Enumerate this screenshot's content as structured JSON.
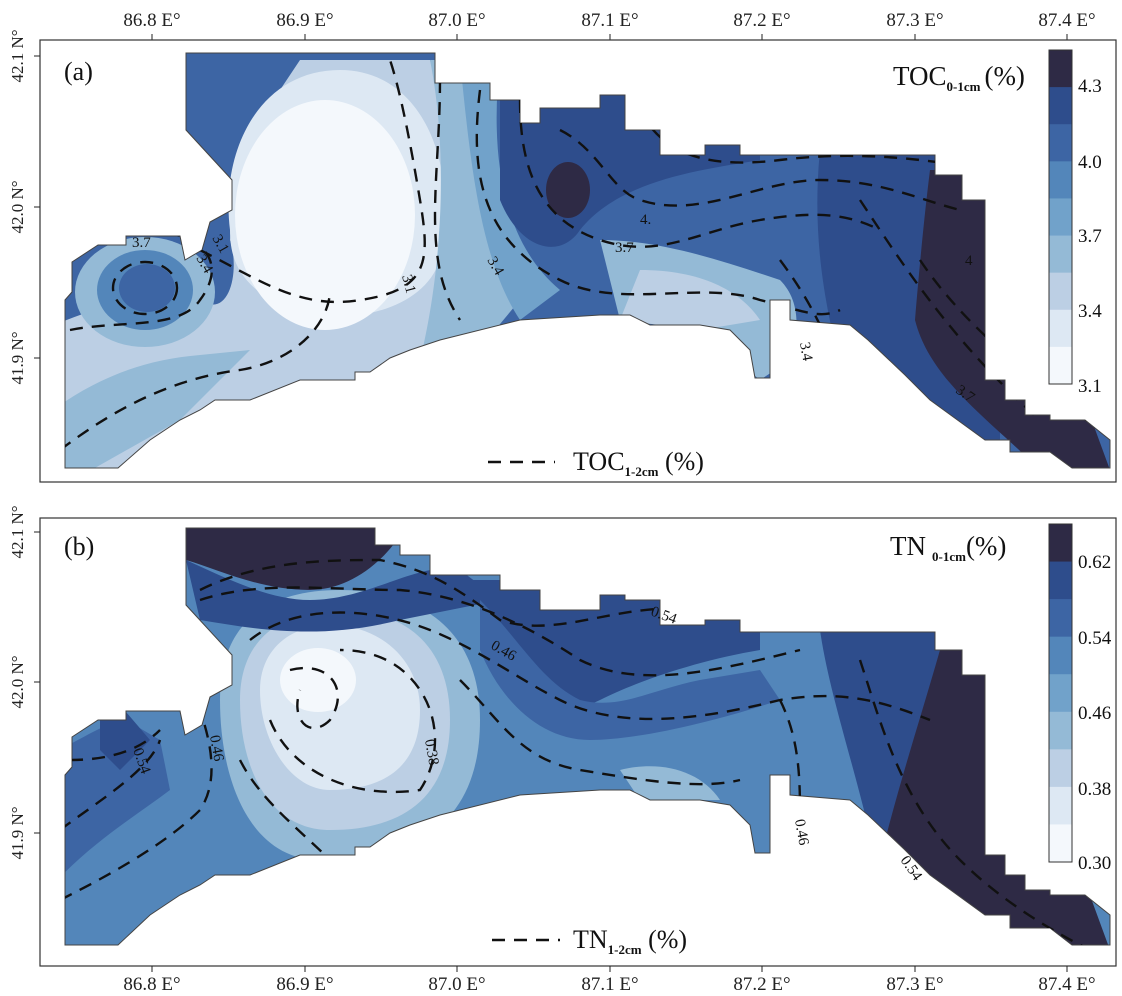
{
  "top_axis_labels": [
    "86.8 E°",
    "86.9 E°",
    "87.0 E°",
    "87.1 E°",
    "87.2 E°",
    "87.3 E°",
    "87.4 E°"
  ],
  "bottom_axis_labels": [
    "86.8 E°",
    "86.9 E°",
    "87.0 E°",
    "87.1 E°",
    "87.2 E°",
    "87.3 E°",
    "87.4 E°"
  ],
  "panel_a": {
    "tag": "(a)",
    "lat_labels": [
      "42.1 N°",
      "42.0 N°",
      "41.9 N°"
    ],
    "colorbar_title": "TOC",
    "colorbar_title_sub": "0-1cm",
    "colorbar_title_unit": "(%)",
    "colorbar_ticks": [
      "4.3",
      "4.0",
      "3.7",
      "3.4",
      "3.1"
    ],
    "colorbar_colors": [
      "#2e2a45",
      "#2e4d8c",
      "#3d65a4",
      "#5386ba",
      "#71a2ca",
      "#94bad6",
      "#bccfe4",
      "#dde8f3",
      "#f4f8fc"
    ],
    "contour_labels": [
      "3.7",
      "3.1",
      "3.4",
      "3.1",
      "3.4",
      "4.",
      "3.7",
      "3.4",
      "3.4",
      "4",
      "3.7"
    ],
    "legend_text": "TOC",
    "legend_sub": "1-2cm",
    "legend_unit": " (%)"
  },
  "panel_b": {
    "tag": "(b)",
    "lat_labels": [
      "42.1 N°",
      "42.0 N°",
      "41.9 N°"
    ],
    "colorbar_title": "TN",
    "colorbar_title_sub": "0-1cm",
    "colorbar_title_unit": "(%)",
    "colorbar_ticks": [
      "0.62",
      "0.54",
      "0.46",
      "0.38",
      "0.30"
    ],
    "colorbar_colors": [
      "#2e2a45",
      "#2e4d8c",
      "#3d65a4",
      "#5386ba",
      "#71a2ca",
      "#94bad6",
      "#bccfe4",
      "#dde8f3",
      "#f4f8fc"
    ],
    "contour_labels": [
      "0.54",
      "0.46",
      "0.38",
      "0.46",
      "0.54",
      "0.46",
      "0.54"
    ],
    "legend_text": "TN",
    "legend_sub": "1-2cm",
    "legend_unit": " (%)"
  }
}
